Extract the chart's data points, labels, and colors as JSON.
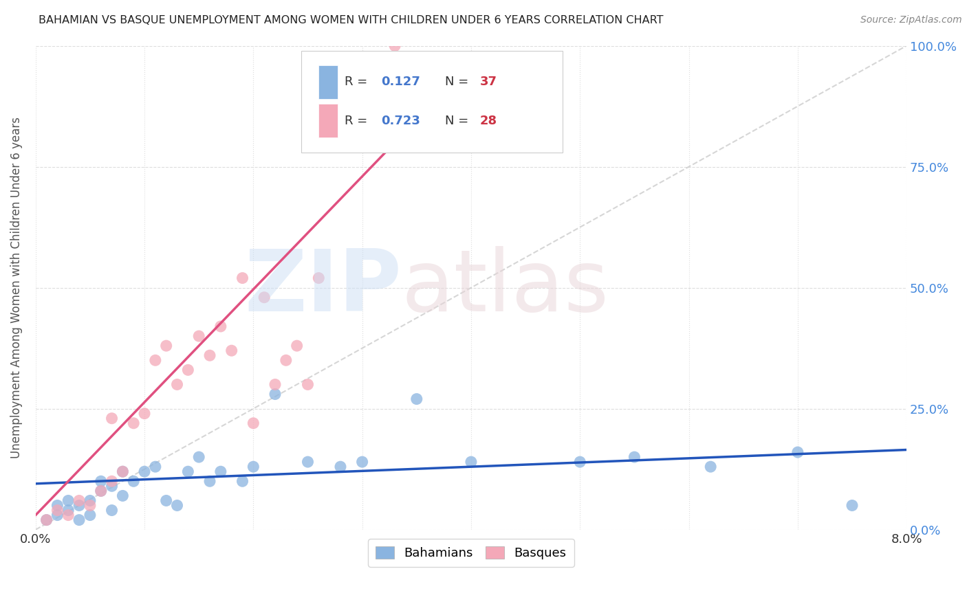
{
  "title": "BAHAMIAN VS BASQUE UNEMPLOYMENT AMONG WOMEN WITH CHILDREN UNDER 6 YEARS CORRELATION CHART",
  "source": "Source: ZipAtlas.com",
  "ylabel": "Unemployment Among Women with Children Under 6 years",
  "xlim": [
    0.0,
    0.08
  ],
  "ylim": [
    0.0,
    1.0
  ],
  "title_color": "#222222",
  "source_color": "#888888",
  "legend_R1": "0.127",
  "legend_N1": "37",
  "legend_R2": "0.723",
  "legend_N2": "28",
  "legend_label1": "Bahamians",
  "legend_label2": "Basques",
  "color_bahamian": "#8ab4e0",
  "color_basque": "#f4a8b8",
  "color_line_bahamian": "#2255bb",
  "color_line_basque": "#e05080",
  "color_ref_line": "#cccccc",
  "color_legend_blue": "#4477cc",
  "color_legend_red": "#cc3344",
  "color_grid": "#dddddd",
  "color_ytick": "#4488dd",
  "bahamian_x": [
    0.001,
    0.002,
    0.002,
    0.003,
    0.003,
    0.004,
    0.004,
    0.005,
    0.005,
    0.006,
    0.006,
    0.007,
    0.007,
    0.008,
    0.008,
    0.009,
    0.01,
    0.011,
    0.012,
    0.013,
    0.014,
    0.015,
    0.016,
    0.017,
    0.019,
    0.02,
    0.022,
    0.025,
    0.028,
    0.03,
    0.035,
    0.04,
    0.05,
    0.055,
    0.062,
    0.07,
    0.075
  ],
  "bahamian_y": [
    0.02,
    0.03,
    0.05,
    0.04,
    0.06,
    0.05,
    0.02,
    0.06,
    0.03,
    0.08,
    0.1,
    0.09,
    0.04,
    0.12,
    0.07,
    0.1,
    0.12,
    0.13,
    0.06,
    0.05,
    0.12,
    0.15,
    0.1,
    0.12,
    0.1,
    0.13,
    0.28,
    0.14,
    0.13,
    0.14,
    0.27,
    0.14,
    0.14,
    0.15,
    0.13,
    0.16,
    0.05
  ],
  "basque_x": [
    0.001,
    0.002,
    0.003,
    0.004,
    0.005,
    0.006,
    0.007,
    0.007,
    0.008,
    0.009,
    0.01,
    0.011,
    0.012,
    0.013,
    0.014,
    0.015,
    0.016,
    0.017,
    0.018,
    0.019,
    0.02,
    0.021,
    0.022,
    0.023,
    0.024,
    0.025,
    0.026,
    0.033
  ],
  "basque_y": [
    0.02,
    0.04,
    0.03,
    0.06,
    0.05,
    0.08,
    0.1,
    0.23,
    0.12,
    0.22,
    0.24,
    0.35,
    0.38,
    0.3,
    0.33,
    0.4,
    0.36,
    0.42,
    0.37,
    0.52,
    0.22,
    0.48,
    0.3,
    0.35,
    0.38,
    0.3,
    0.52,
    1.0
  ],
  "line_bah_x0": 0.0,
  "line_bah_y0": 0.095,
  "line_bah_x1": 0.08,
  "line_bah_y1": 0.165,
  "line_bas_x0": 0.0,
  "line_bas_y0": 0.03,
  "line_bas_x1": 0.033,
  "line_bas_y1": 0.8
}
